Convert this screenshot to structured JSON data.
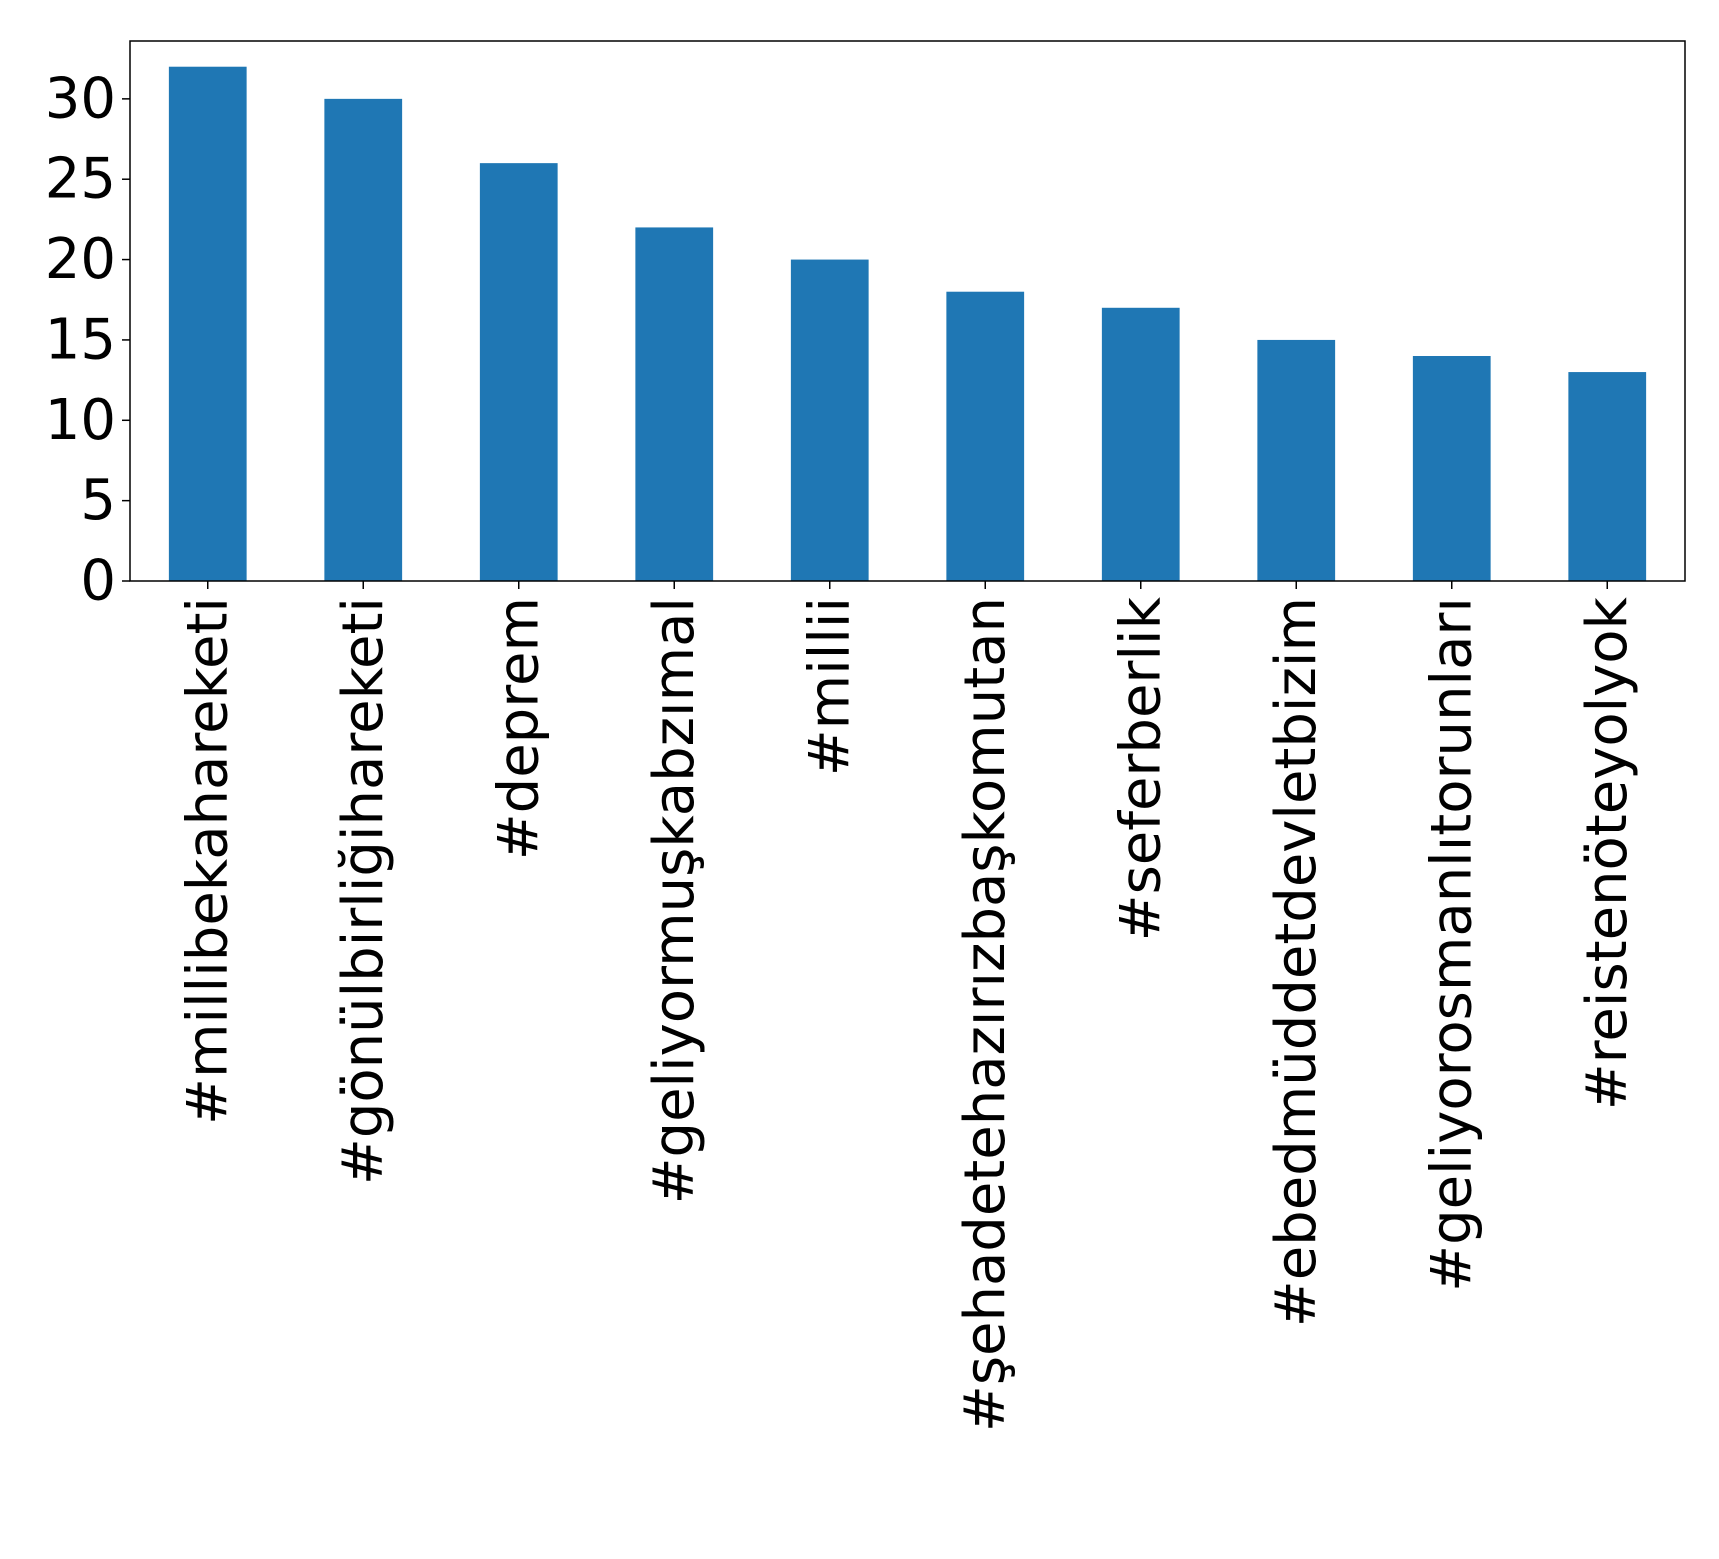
{
  "chart_data": {
    "type": "bar",
    "title": "",
    "xlabel": "",
    "ylabel": "",
    "categories": [
      "#millibekahareketi",
      "#gönülbirliğihareketi",
      "#deprem",
      "#geliyormuşkabzımal",
      "#millii",
      "#şehadetehazırızbaşkomutan",
      "#seferberlik",
      "#ebedmüddetdevletbizim",
      "#geliyorosmanlıtorunları",
      "#reistenöteyolyok"
    ],
    "values": [
      32,
      30,
      26,
      22,
      20,
      18,
      17,
      15,
      14,
      13
    ],
    "ylim": [
      0,
      33.6
    ],
    "yticks": [
      0,
      5,
      10,
      15,
      20,
      25,
      30
    ],
    "grid": false,
    "legend": "none",
    "bar_color": "#1f77b4"
  }
}
